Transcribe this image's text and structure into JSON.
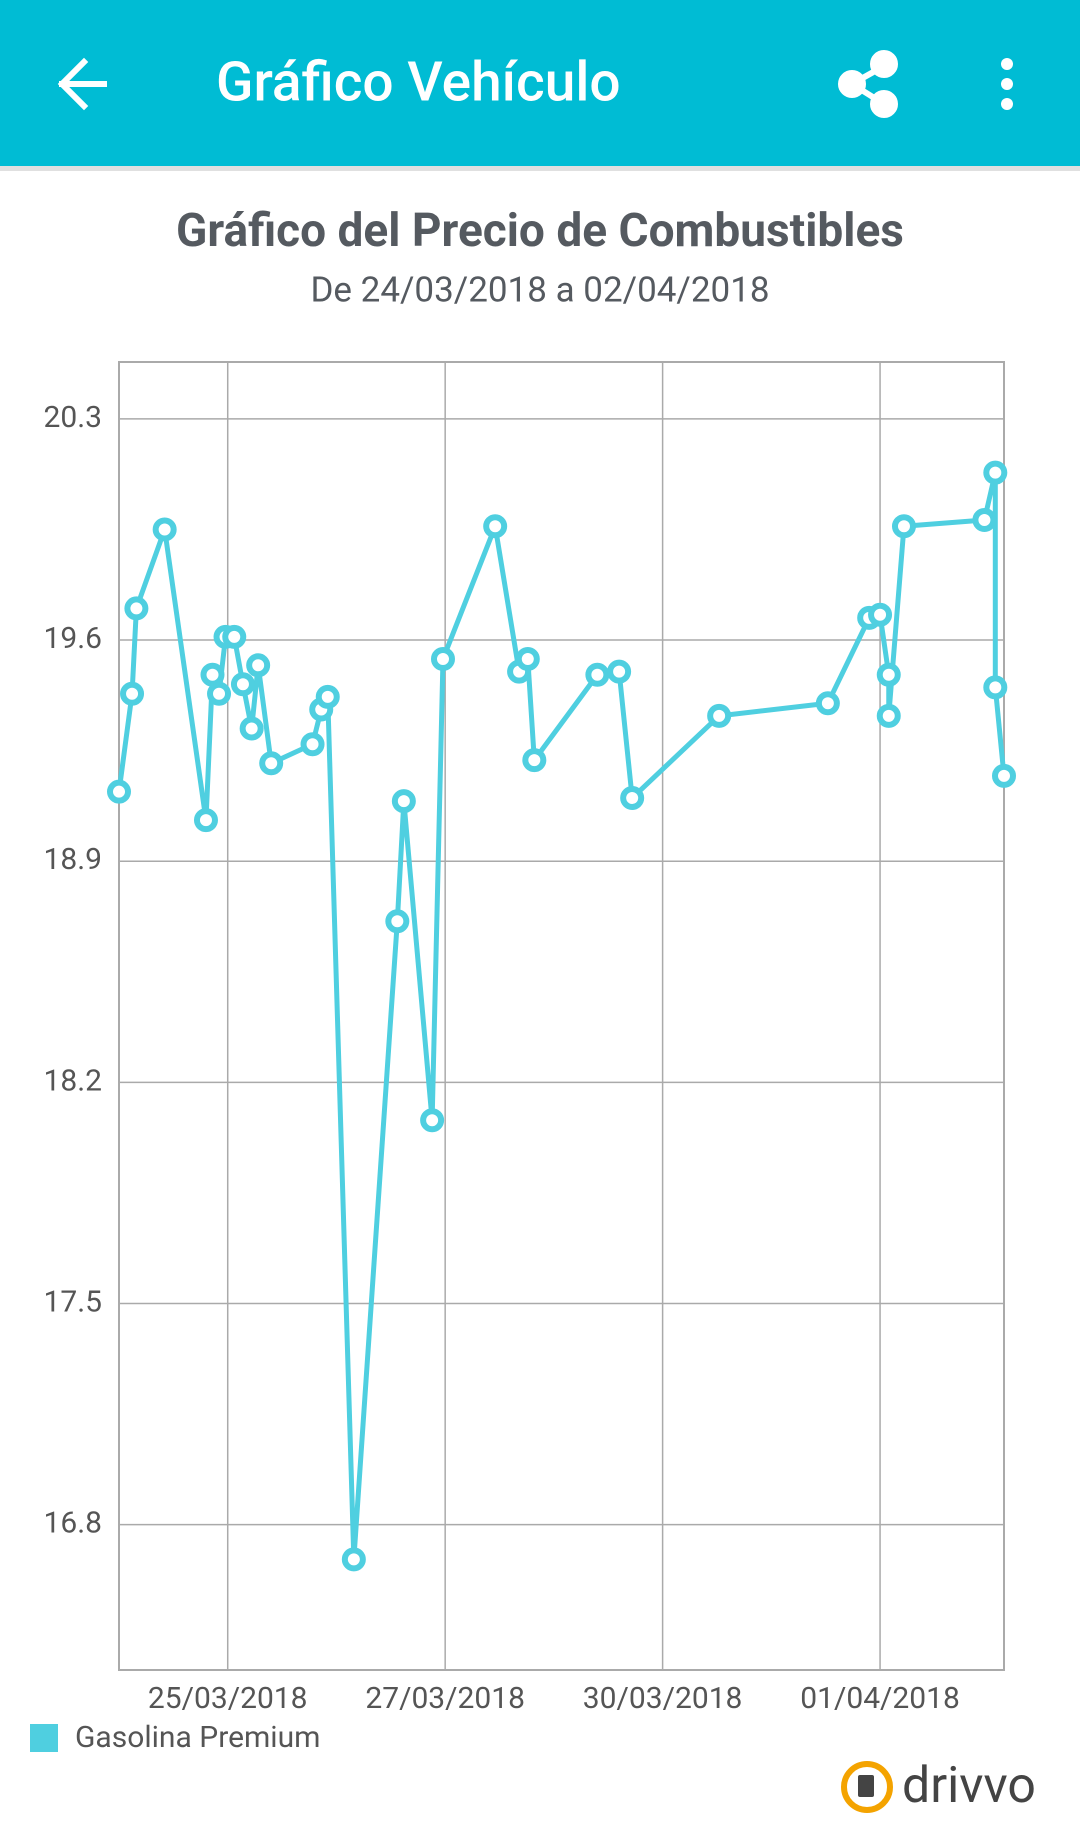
{
  "header": {
    "title": "Gráfico Vehículo"
  },
  "chart_data": {
    "type": "line",
    "title": "Gráfico del Precio de Combustibles",
    "subtitle": "De 24/03/2018 a 02/04/2018",
    "x": [
      0.5,
      0.56,
      0.58,
      0.71,
      0.9,
      0.93,
      0.96,
      0.99,
      1.03,
      1.07,
      1.11,
      1.14,
      1.2,
      1.39,
      1.43,
      1.46,
      1.58,
      1.78,
      1.81,
      1.94,
      1.99,
      2.23,
      2.34,
      2.38,
      2.41,
      2.7,
      2.8,
      2.86,
      3.26,
      3.76,
      3.95,
      4.0,
      4.04,
      4.04,
      4.11,
      4.48,
      4.53,
      4.53,
      4.57
    ],
    "series": [
      {
        "name": "Gasolina Premium",
        "color": "#4fcfe0",
        "values": [
          19.12,
          19.43,
          19.7,
          19.95,
          19.03,
          19.49,
          19.43,
          19.61,
          19.61,
          19.46,
          19.32,
          19.52,
          19.21,
          19.27,
          19.38,
          19.42,
          16.69,
          18.71,
          19.09,
          18.08,
          19.54,
          19.96,
          19.5,
          19.54,
          19.22,
          19.49,
          19.5,
          19.1,
          19.36,
          19.4,
          19.67,
          19.68,
          19.49,
          19.36,
          19.96,
          19.98,
          20.13,
          19.45,
          19.17
        ]
      }
    ],
    "xlim": [
      0.5,
      4.57
    ],
    "xticks": [
      {
        "value": 1,
        "label": "25/03/2018"
      },
      {
        "value": 2,
        "label": "27/03/2018"
      },
      {
        "value": 3,
        "label": "30/03/2018"
      },
      {
        "value": 4,
        "label": "01/04/2018"
      }
    ],
    "ylim": [
      16.34,
      20.48
    ],
    "yticks": [
      16.8,
      17.5,
      18.2,
      18.9,
      19.6,
      20.3
    ],
    "grid": true,
    "legend": "bottom-left"
  },
  "footer": {
    "logo": "drivvo"
  }
}
